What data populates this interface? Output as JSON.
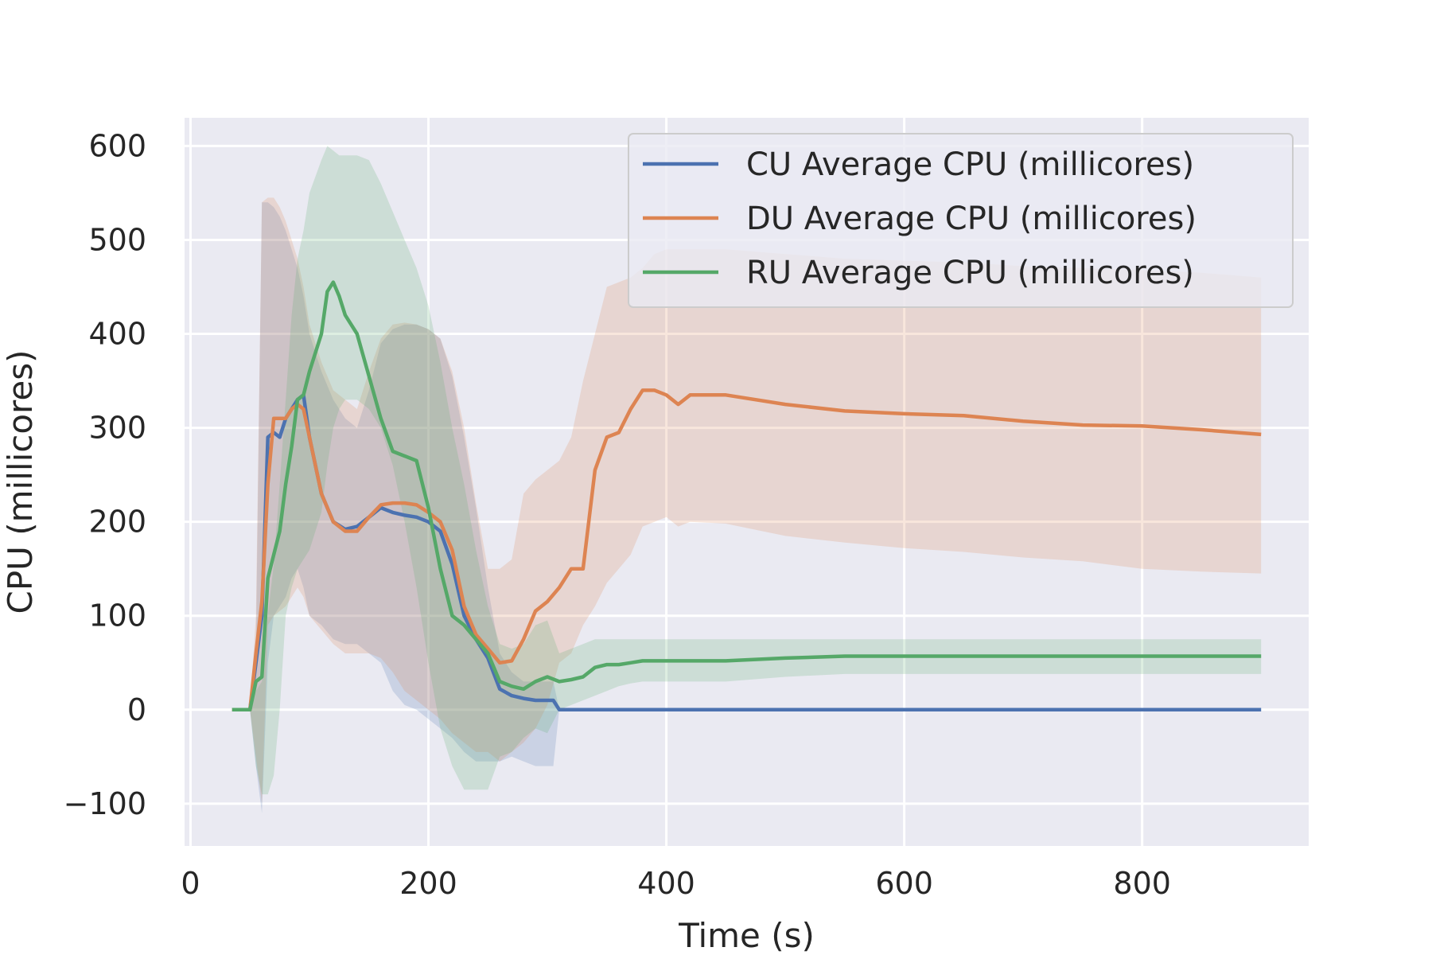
{
  "chart_data": {
    "type": "line",
    "title": "",
    "xlabel": "Time (s)",
    "ylabel": "CPU (millicores)",
    "xlim": [
      -5,
      940
    ],
    "ylim": [
      -145,
      630
    ],
    "xticks": [
      0,
      200,
      400,
      600,
      800
    ],
    "xtick_labels": [
      "0",
      "200",
      "400",
      "600",
      "800"
    ],
    "yticks": [
      -100,
      0,
      100,
      200,
      300,
      400,
      500,
      600
    ],
    "ytick_labels": [
      "−100",
      "0",
      "100",
      "200",
      "300",
      "400",
      "500",
      "600"
    ],
    "grid": true,
    "legend_position": "top-right",
    "series": [
      {
        "name": "CU Average CPU (millicores)",
        "color": "#4c72b0",
        "x": [
          35,
          50,
          55,
          60,
          65,
          70,
          75,
          80,
          85,
          90,
          95,
          100,
          110,
          120,
          130,
          140,
          150,
          160,
          170,
          180,
          190,
          200,
          210,
          220,
          230,
          240,
          250,
          260,
          270,
          280,
          290,
          300,
          305,
          310,
          320,
          400,
          500,
          600,
          700,
          800,
          900
        ],
        "y": [
          0,
          0,
          50,
          100,
          290,
          295,
          290,
          310,
          320,
          330,
          335,
          290,
          230,
          200,
          192,
          195,
          205,
          215,
          210,
          207,
          205,
          200,
          190,
          155,
          100,
          75,
          55,
          22,
          15,
          12,
          10,
          10,
          10,
          0,
          0,
          0,
          0,
          0,
          0,
          0,
          0
        ],
        "band_upper": [
          0,
          0,
          70,
          540,
          540,
          535,
          525,
          510,
          490,
          470,
          440,
          400,
          360,
          330,
          310,
          300,
          340,
          390,
          405,
          410,
          410,
          405,
          395,
          355,
          290,
          215,
          130,
          60,
          40,
          30,
          30,
          30,
          30,
          0,
          0,
          0,
          0,
          0,
          0,
          0,
          0
        ],
        "band_lower": [
          0,
          0,
          -60,
          -110,
          50,
          100,
          110,
          120,
          140,
          150,
          130,
          100,
          90,
          75,
          70,
          70,
          60,
          50,
          20,
          5,
          0,
          -10,
          -20,
          -30,
          -45,
          -55,
          -55,
          -55,
          -50,
          -55,
          -60,
          -60,
          -60,
          0,
          0,
          0,
          0,
          0,
          0,
          0,
          0
        ]
      },
      {
        "name": "DU Average CPU (millicores)",
        "color": "#dd8452",
        "x": [
          35,
          50,
          55,
          60,
          65,
          70,
          75,
          80,
          85,
          90,
          95,
          100,
          110,
          120,
          130,
          140,
          150,
          160,
          170,
          180,
          190,
          200,
          210,
          220,
          230,
          240,
          250,
          260,
          270,
          280,
          290,
          300,
          310,
          320,
          330,
          340,
          350,
          360,
          370,
          380,
          390,
          400,
          410,
          420,
          450,
          500,
          550,
          600,
          650,
          700,
          750,
          800,
          850,
          900
        ],
        "y": [
          0,
          0,
          60,
          115,
          240,
          310,
          310,
          310,
          320,
          325,
          320,
          290,
          230,
          200,
          190,
          190,
          205,
          218,
          220,
          220,
          218,
          210,
          200,
          170,
          110,
          80,
          65,
          50,
          52,
          75,
          105,
          115,
          130,
          150,
          150,
          255,
          290,
          295,
          320,
          340,
          340,
          335,
          325,
          335,
          335,
          325,
          318,
          315,
          313,
          307,
          303,
          302,
          298,
          293
        ],
        "band_upper": [
          0,
          0,
          100,
          540,
          545,
          545,
          535,
          520,
          500,
          480,
          450,
          410,
          370,
          340,
          330,
          320,
          360,
          395,
          410,
          412,
          410,
          405,
          395,
          360,
          300,
          220,
          150,
          150,
          160,
          230,
          245,
          255,
          265,
          290,
          350,
          400,
          450,
          455,
          460,
          470,
          485,
          490,
          490,
          490,
          490,
          485,
          480,
          478,
          476,
          472,
          470,
          468,
          465,
          460
        ],
        "band_lower": [
          0,
          0,
          -50,
          -100,
          90,
          100,
          105,
          110,
          120,
          130,
          120,
          100,
          85,
          70,
          60,
          60,
          60,
          55,
          40,
          20,
          10,
          0,
          -10,
          -25,
          -35,
          -45,
          -45,
          -55,
          -45,
          -35,
          -20,
          5,
          50,
          60,
          90,
          110,
          135,
          150,
          165,
          195,
          200,
          205,
          195,
          200,
          198,
          185,
          178,
          172,
          168,
          162,
          158,
          150,
          147,
          145
        ]
      },
      {
        "name": "RU Average CPU (millicores)",
        "color": "#55a868",
        "x": [
          35,
          50,
          55,
          60,
          65,
          70,
          75,
          80,
          85,
          90,
          95,
          100,
          110,
          115,
          120,
          125,
          130,
          140,
          150,
          160,
          170,
          180,
          190,
          200,
          210,
          220,
          230,
          240,
          250,
          260,
          270,
          280,
          290,
          300,
          310,
          320,
          330,
          340,
          350,
          360,
          370,
          380,
          400,
          450,
          500,
          550,
          600,
          650,
          700,
          750,
          800,
          850,
          900
        ],
        "y": [
          0,
          0,
          30,
          35,
          140,
          165,
          190,
          240,
          280,
          330,
          335,
          360,
          400,
          445,
          455,
          440,
          420,
          400,
          355,
          310,
          275,
          270,
          265,
          215,
          150,
          100,
          90,
          75,
          60,
          30,
          25,
          22,
          30,
          35,
          30,
          32,
          35,
          45,
          48,
          48,
          50,
          52,
          52,
          52,
          55,
          57,
          57,
          57,
          57,
          57,
          57,
          57,
          57
        ],
        "band_upper": [
          0,
          0,
          20,
          30,
          100,
          155,
          240,
          330,
          420,
          480,
          510,
          550,
          585,
          600,
          595,
          590,
          590,
          590,
          585,
          560,
          530,
          500,
          470,
          430,
          370,
          300,
          240,
          170,
          110,
          70,
          65,
          70,
          90,
          95,
          60,
          65,
          70,
          75,
          75,
          75,
          75,
          75,
          75,
          75,
          75,
          75,
          75,
          75,
          75,
          75,
          75,
          75,
          75
        ],
        "band_lower": [
          0,
          0,
          -60,
          -90,
          -90,
          -70,
          0,
          100,
          130,
          150,
          160,
          170,
          210,
          260,
          300,
          320,
          330,
          330,
          320,
          300,
          260,
          200,
          130,
          50,
          -20,
          -60,
          -85,
          -85,
          -85,
          -50,
          -45,
          -30,
          -20,
          -25,
          0,
          5,
          10,
          15,
          20,
          25,
          28,
          30,
          30,
          30,
          35,
          38,
          38,
          38,
          38,
          38,
          38,
          38,
          38
        ]
      }
    ]
  }
}
